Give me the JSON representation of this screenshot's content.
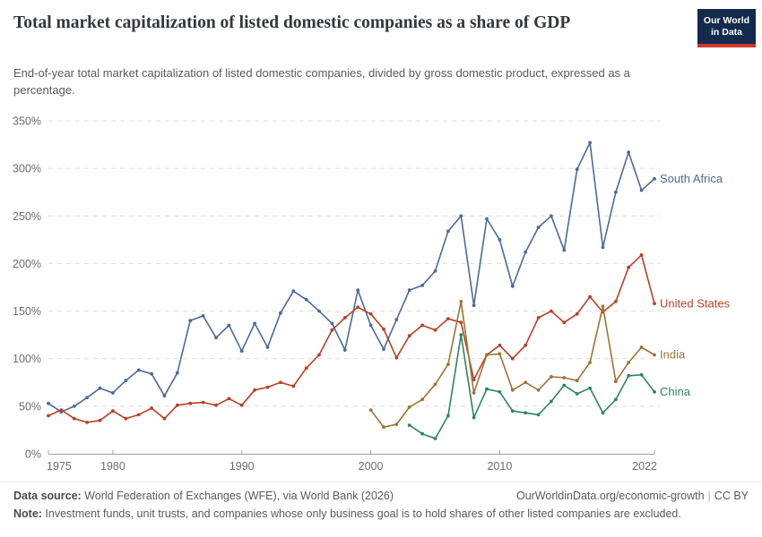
{
  "header": {
    "title": "Total market capitalization of listed domestic companies as a share of GDP",
    "subtitle": "End-of-year total market capitalization of listed domestic companies, divided by gross domestic product, expressed as a percentage.",
    "logo": {
      "line1": "Our World",
      "line2": "in Data",
      "bg_color": "#142A4D",
      "accent_color": "#D0362A"
    }
  },
  "footer": {
    "datasource_label": "Data source:",
    "datasource_text": " World Federation of Exchanges (WFE), via World Bank (2026)",
    "citation": "OurWorldinData.org/economic-growth",
    "license": "CC BY",
    "note_label": "Note:",
    "note_text": " Investment funds, unit trusts, and companies whose only business goal is to hold shares of other listed companies are excluded."
  },
  "chart_data": {
    "type": "line",
    "title": "Total market capitalization of listed domestic companies as a share of GDP",
    "xlabel": "",
    "ylabel": "",
    "unit": "%",
    "grid": true,
    "legend_position": "end-of-line",
    "x_range": [
      1975,
      2022
    ],
    "y_range": [
      0,
      350
    ],
    "x_ticks": [
      1975,
      1980,
      1990,
      2000,
      2010,
      2022
    ],
    "x_tick_labels": [
      "1975",
      "1980",
      "1990",
      "2000",
      "2010",
      "2022"
    ],
    "y_ticks": [
      0,
      50,
      100,
      150,
      200,
      250,
      300,
      350
    ],
    "y_tick_labels": [
      "0%",
      "50%",
      "100%",
      "150%",
      "200%",
      "250%",
      "300%",
      "350%"
    ],
    "series": [
      {
        "name": "South Africa",
        "color": "#4C6A9C",
        "start_year": 1975,
        "values": [
          53,
          44,
          50,
          59,
          69,
          64,
          77,
          88,
          84,
          61,
          85,
          140,
          145,
          122,
          135,
          108,
          137,
          112,
          148,
          171,
          162,
          150,
          137,
          109,
          172,
          135,
          110,
          141,
          172,
          177,
          192,
          234,
          250,
          156,
          247,
          225,
          176,
          212,
          238,
          250,
          214,
          299,
          327,
          217,
          275,
          317,
          277,
          289
        ]
      },
      {
        "name": "United States",
        "color": "#BC3E26",
        "start_year": 1975,
        "values": [
          40,
          46,
          37,
          33,
          35,
          45,
          37,
          41,
          48,
          37,
          51,
          53,
          54,
          51,
          58,
          51,
          67,
          70,
          75,
          71,
          90,
          104,
          130,
          143,
          154,
          147,
          131,
          101,
          124,
          135,
          130,
          142,
          138,
          78,
          104,
          114,
          100,
          114,
          143,
          150,
          138,
          147,
          165,
          149,
          160,
          196,
          209,
          158
        ]
      },
      {
        "name": "India",
        "color": "#9D7433",
        "start_year": 2000,
        "values": [
          46,
          28,
          31,
          49,
          57,
          73,
          94,
          160,
          64,
          104,
          105,
          67,
          75,
          67,
          81,
          80,
          77,
          96,
          155,
          76,
          96,
          112,
          104
        ]
      },
      {
        "name": "China",
        "color": "#2C8465",
        "start_year": 2003,
        "values": [
          30,
          21,
          16,
          40,
          125,
          38,
          68,
          65,
          45,
          43,
          41,
          55,
          72,
          63,
          69,
          43,
          57,
          82,
          83,
          65
        ]
      }
    ]
  }
}
